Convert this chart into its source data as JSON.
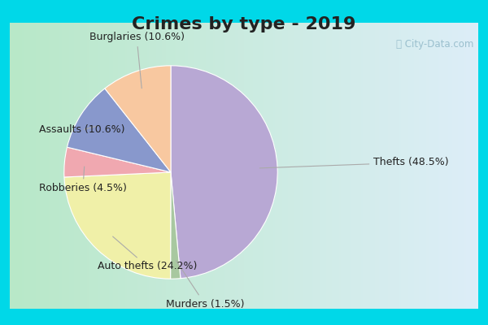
{
  "title": "Crimes by type - 2019",
  "slices": [
    {
      "label": "Thefts",
      "pct": 48.5,
      "color": "#b8a8d4"
    },
    {
      "label": "Murders",
      "pct": 1.5,
      "color": "#a8c8a0"
    },
    {
      "label": "Auto thefts",
      "pct": 24.2,
      "color": "#f0f0a8"
    },
    {
      "label": "Robberies",
      "pct": 4.5,
      "color": "#f0a8b0"
    },
    {
      "label": "Assaults",
      "pct": 10.6,
      "color": "#8898cc"
    },
    {
      "label": "Burglaries",
      "pct": 10.6,
      "color": "#f8c8a0"
    }
  ],
  "bg_color_border": "#00d8e8",
  "bg_gradient_left": "#b8e8c8",
  "bg_gradient_right": "#d8eef8",
  "title_fontsize": 16,
  "label_fontsize": 9,
  "watermark": "ⓘ City-Data.com",
  "border_width": 12
}
